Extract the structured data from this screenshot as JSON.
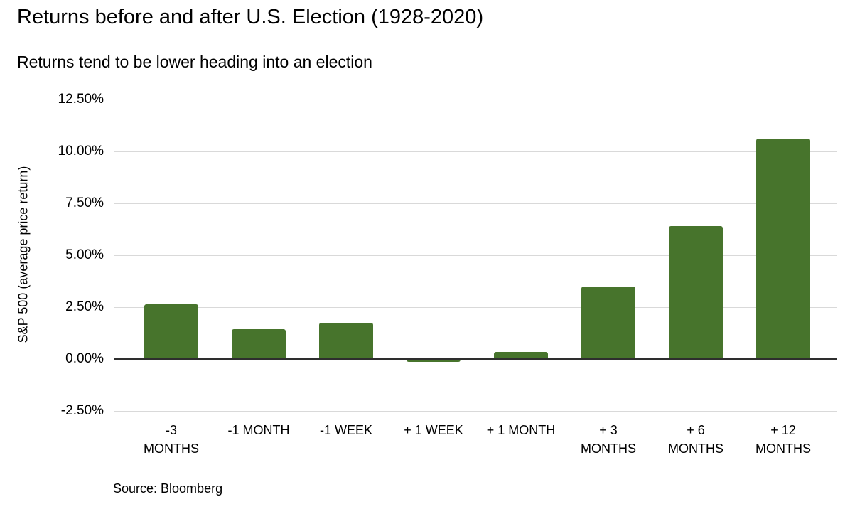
{
  "chart_data": {
    "type": "bar",
    "title": "Returns before and after U.S. Election (1928-2020)",
    "subtitle": "Returns tend to be lower heading into an election",
    "categories": [
      "-3 MONTHS",
      "-1 MONTH",
      "-1 WEEK",
      "+ 1 WEEK",
      "+ 1 MONTH",
      "+ 3 MONTHS",
      "+ 6 MONTHS",
      "+ 12 MONTHS"
    ],
    "category_lines": [
      [
        "-3",
        "MONTHS"
      ],
      [
        "-1 MONTH"
      ],
      [
        "-1 WEEK"
      ],
      [
        "+ 1 WEEK"
      ],
      [
        "+ 1 MONTH"
      ],
      [
        "+ 3",
        "MONTHS"
      ],
      [
        "+ 6",
        "MONTHS"
      ],
      [
        "+ 12",
        "MONTHS"
      ]
    ],
    "values": [
      2.65,
      1.45,
      1.75,
      -0.15,
      0.35,
      3.5,
      6.4,
      10.6
    ],
    "unit": "%",
    "xlabel": "",
    "ylabel": "S&P 500 (average price return)",
    "ylim": [
      -2.5,
      12.5
    ],
    "ytick_values": [
      12.5,
      10,
      7.5,
      5,
      2.5,
      0,
      -2.5
    ],
    "ytick_labels": [
      "12.50%",
      "10.00%",
      "7.50%",
      "5.00%",
      "2.50%",
      "0.00%",
      "-2.50%"
    ],
    "grid": true,
    "legend": "none",
    "bar_color": "#47742c",
    "gridline_color": "#d9d9d9",
    "zero_line_color": "#2e2e2e",
    "source": "Source: Bloomberg"
  }
}
